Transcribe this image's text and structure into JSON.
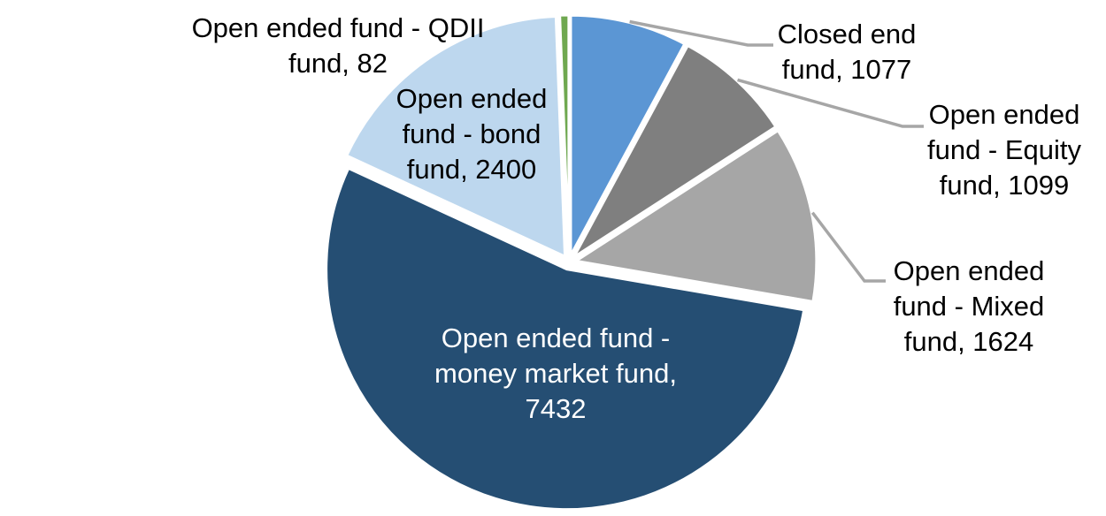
{
  "chart_data": {
    "type": "pie",
    "title": "",
    "direction": "clockwise",
    "start_angle_deg": 0,
    "total": 13714,
    "legend_position": "none",
    "labels_style": "category name + value, outside or inside slices, some with leader lines",
    "background_color": "#FFFFFF",
    "slice_border_color": "#FFFFFF",
    "leader_line_color": "#A6A6A6",
    "categories": [
      "Closed end fund",
      "Open ended fund - Equity fund",
      "Open ended fund - Mixed fund",
      "Open ended fund - money market fund",
      "Open ended fund - bond fund",
      "Open ended fund - QDII fund"
    ],
    "values": [
      1077,
      1099,
      1624,
      7432,
      2400,
      82
    ],
    "slices": [
      {
        "id": "closed-end-fund",
        "label": "Closed end fund, 1077",
        "label_lines": [
          "Closed end",
          "fund, 1077"
        ],
        "value": 1077,
        "color": "#5B96D4",
        "text_color": "#000000",
        "has_leader_line": true
      },
      {
        "id": "open-ended-equity-fund",
        "label": "Open ended fund - Equity fund, 1099",
        "label_lines": [
          "Open ended",
          "fund - Equity",
          "fund, 1099"
        ],
        "value": 1099,
        "color": "#7F7F7F",
        "text_color": "#000000",
        "has_leader_line": true
      },
      {
        "id": "open-ended-mixed-fund",
        "label": "Open ended fund - Mixed fund, 1624",
        "label_lines": [
          "Open ended",
          "fund - Mixed",
          "fund, 1624"
        ],
        "value": 1624,
        "color": "#A6A6A6",
        "text_color": "#000000",
        "has_leader_line": true
      },
      {
        "id": "open-ended-money-market-fund",
        "label": "Open ended fund - money market fund, 7432",
        "label_lines": [
          "Open ended fund -",
          "money market fund,",
          "7432"
        ],
        "value": 7432,
        "color": "#254E73",
        "text_color": "#FFFFFF",
        "has_leader_line": false
      },
      {
        "id": "open-ended-bond-fund",
        "label": "Open ended fund - bond fund, 2400",
        "label_lines": [
          "Open ended",
          "fund - bond",
          "fund, 2400"
        ],
        "value": 2400,
        "color": "#BDD7EE",
        "text_color": "#000000",
        "has_leader_line": false
      },
      {
        "id": "open-ended-qdii-fund",
        "label": "Open ended fund - QDII fund, 82",
        "label_lines": [
          "Open ended fund - QDII",
          "fund, 82"
        ],
        "value": 82,
        "color": "#6FA850",
        "text_color": "#000000",
        "has_leader_line": false
      }
    ]
  }
}
